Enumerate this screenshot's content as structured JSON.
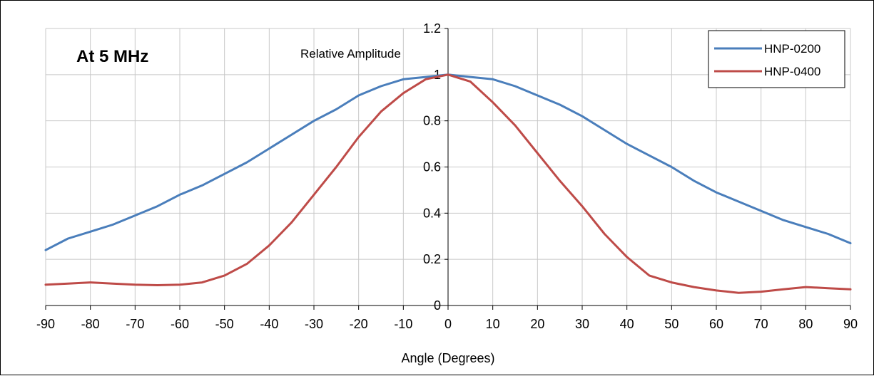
{
  "chart_data": {
    "type": "line",
    "title": "At 5 MHz",
    "xlabel": "Angle (Degrees)",
    "ylabel": "Relative Amplitude",
    "xlim": [
      -90,
      90
    ],
    "ylim": [
      0,
      1.2
    ],
    "x_ticks": [
      "-90",
      "-80",
      "-70",
      "-60",
      "-50",
      "-40",
      "-30",
      "-20",
      "-10",
      "0",
      "10",
      "20",
      "30",
      "40",
      "50",
      "60",
      "70",
      "80",
      "90"
    ],
    "y_ticks": [
      "0",
      "0.2",
      "0.4",
      "0.6",
      "0.8",
      "1",
      "1.2"
    ],
    "grid": true,
    "legend_position": "top-right",
    "x": [
      -90,
      -85,
      -80,
      -75,
      -70,
      -65,
      -60,
      -55,
      -50,
      -45,
      -40,
      -35,
      -30,
      -25,
      -20,
      -15,
      -10,
      -5,
      0,
      5,
      10,
      15,
      20,
      25,
      30,
      35,
      40,
      45,
      50,
      55,
      60,
      65,
      70,
      75,
      80,
      85,
      90
    ],
    "series": [
      {
        "name": "HNP-0200",
        "color": "#4a7ebb",
        "values": [
          0.24,
          0.29,
          0.32,
          0.35,
          0.39,
          0.43,
          0.48,
          0.52,
          0.57,
          0.62,
          0.68,
          0.74,
          0.8,
          0.85,
          0.91,
          0.95,
          0.98,
          0.99,
          1.0,
          0.99,
          0.98,
          0.95,
          0.91,
          0.87,
          0.82,
          0.76,
          0.7,
          0.65,
          0.6,
          0.54,
          0.49,
          0.45,
          0.41,
          0.37,
          0.34,
          0.31,
          0.27
        ]
      },
      {
        "name": "HNP-0400",
        "color": "#be4b48",
        "values": [
          0.09,
          0.095,
          0.1,
          0.095,
          0.09,
          0.088,
          0.09,
          0.1,
          0.13,
          0.18,
          0.26,
          0.36,
          0.48,
          0.6,
          0.73,
          0.84,
          0.92,
          0.98,
          1.0,
          0.97,
          0.88,
          0.78,
          0.66,
          0.54,
          0.43,
          0.31,
          0.21,
          0.13,
          0.1,
          0.08,
          0.065,
          0.055,
          0.06,
          0.07,
          0.08,
          0.075,
          0.07
        ]
      }
    ]
  }
}
